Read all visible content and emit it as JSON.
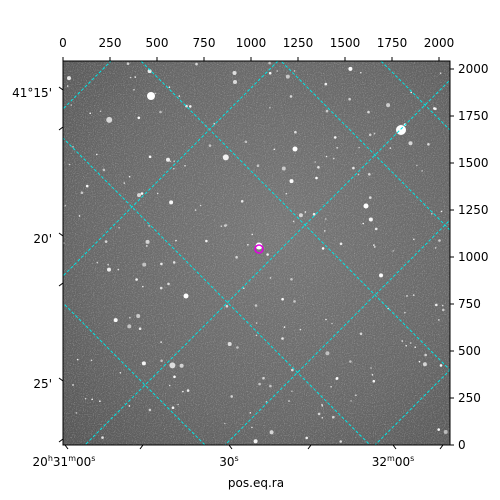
{
  "figure": {
    "xlabel": "pos.eq.ra",
    "top_ticks": [
      "0",
      "250",
      "500",
      "750",
      "1000",
      "1250",
      "1500",
      "1750",
      "2000"
    ],
    "right_ticks": [
      "0",
      "250",
      "500",
      "750",
      "1000",
      "1250",
      "1500",
      "1750",
      "2000"
    ],
    "left_ticks": [
      "41°15'",
      "20'",
      "25'"
    ],
    "bottom_ticks": {
      "t1": {
        "h": "20",
        "hs": "h",
        "m": "31",
        "ms": "m",
        "s": "00",
        "ss": "s"
      },
      "t2": {
        "s": "30",
        "ss": "s"
      },
      "t3": {
        "m": "32",
        "ms": "m",
        "s": "00",
        "ss": "s"
      }
    },
    "colors": {
      "grid": "#00e5e5",
      "marker": "#e000e0",
      "background_sky": "#6b6b6b"
    },
    "marker_icon": "circle-marker"
  }
}
